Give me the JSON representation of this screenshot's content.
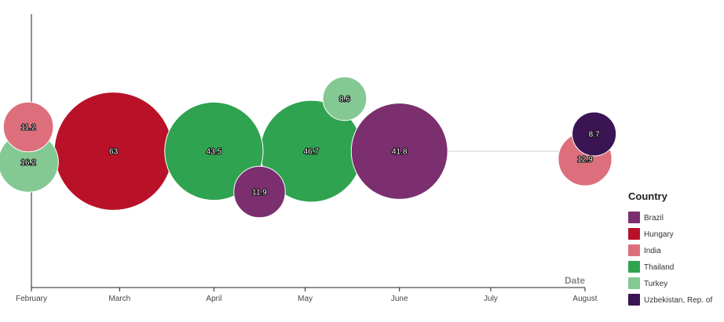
{
  "chart_data": {
    "type": "scatter",
    "xlabel": "Date",
    "x_ticks": [
      "February",
      "March",
      "April",
      "May",
      "June",
      "July",
      "August"
    ],
    "legend": {
      "title": "Country",
      "placement": "right"
    },
    "series": [
      {
        "name": "Brazil",
        "color": "#7b2f6e",
        "points": [
          {
            "x": "2020-04-16",
            "value": 11.9
          },
          {
            "x": "2020-06-01",
            "value": 41.8
          }
        ]
      },
      {
        "name": "Hungary",
        "color": "#b91228",
        "points": [
          {
            "x": "2020-02-28",
            "value": 63
          }
        ]
      },
      {
        "name": "India",
        "color": "#dd6f7c",
        "points": [
          {
            "x": "2020-01-31",
            "value": 11.2
          },
          {
            "x": "2020-08-01",
            "value": 12.9
          }
        ]
      },
      {
        "name": "Thailand",
        "color": "#2fa34f",
        "points": [
          {
            "x": "2020-04-01",
            "value": 43.5
          },
          {
            "x": "2020-05-03",
            "value": 46.7
          }
        ]
      },
      {
        "name": "Turkey",
        "color": "#84c993",
        "points": [
          {
            "x": "2020-01-31",
            "value": 16.2
          },
          {
            "x": "2020-05-14",
            "value": 8.6
          }
        ]
      },
      {
        "name": "Uzbekistan, Rep. of",
        "color": "#3b1454",
        "points": [
          {
            "x": "2020-08-04",
            "value": 8.7
          }
        ]
      }
    ]
  }
}
